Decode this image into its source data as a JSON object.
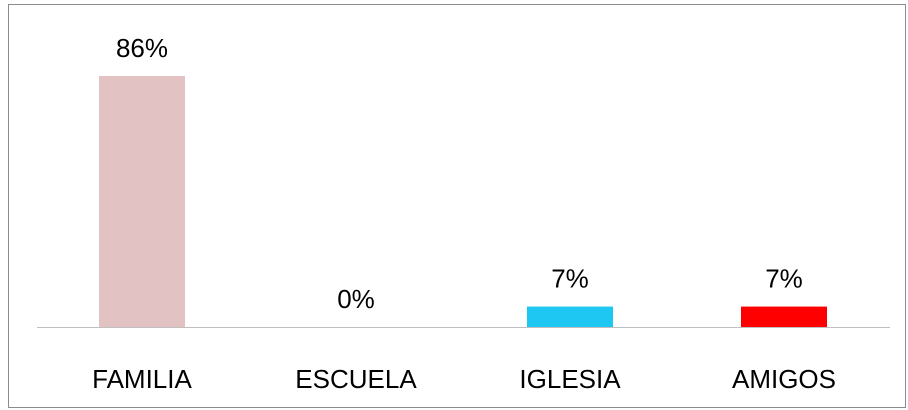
{
  "chart_data": {
    "type": "bar",
    "categories": [
      "FAMILIA",
      "ESCUELA",
      "IGLESIA",
      "AMIGOS"
    ],
    "values": [
      86,
      0,
      7,
      7
    ],
    "value_labels": [
      "86%",
      "0%",
      "7%",
      "7%"
    ],
    "colors": [
      "#e2c2c3",
      "#e2c2c3",
      "#1ec6f2",
      "#ff0000"
    ]
  }
}
